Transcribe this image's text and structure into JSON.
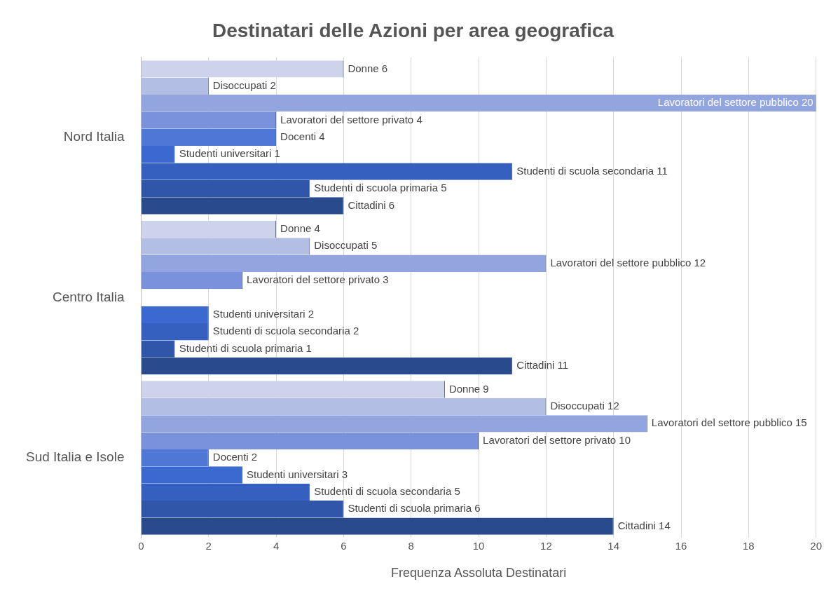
{
  "chart_data": {
    "type": "bar",
    "orientation": "horizontal",
    "title": "Destinatari delle Azioni per area geografica",
    "xlabel": "Frequenza Assoluta Destinatari",
    "categories": [
      "Nord Italia",
      "Centro Italia",
      "Sud Italia e Isole"
    ],
    "series": [
      {
        "color": "#cdd3ea",
        "values": [
          6,
          4,
          9
        ],
        "value_labels": [
          "Donne 6",
          "Donne 4",
          "Donne 9"
        ]
      },
      {
        "color": "#b3bee4",
        "values": [
          2,
          5,
          12
        ],
        "value_labels": [
          "Disoccupati 2",
          "Disoccupati 5",
          "Disoccupati 12"
        ]
      },
      {
        "color": "#93a5df",
        "values": [
          20,
          12,
          15
        ],
        "value_labels": [
          "Lavoratori del settore pubblico 20",
          "Lavoratori del settore pubblico 12",
          "Lavoratori del settore pubblico 15"
        ]
      },
      {
        "color": "#7a92dc",
        "values": [
          4,
          3,
          10
        ],
        "value_labels": [
          "Lavoratori del settore privato 4",
          "Lavoratori del settore privato 3",
          "Lavoratori del settore privato 10"
        ]
      },
      {
        "color": "#4f78d6",
        "values": [
          4,
          null,
          2
        ],
        "value_labels": [
          "Docenti 4",
          null,
          "Docenti 2"
        ]
      },
      {
        "color": "#3a6ad0",
        "values": [
          1,
          2,
          3
        ],
        "value_labels": [
          "Studenti universitari 1",
          "Studenti universitari 2",
          "Studenti universitari 3"
        ]
      },
      {
        "color": "#3560bf",
        "values": [
          11,
          2,
          5
        ],
        "value_labels": [
          "Studenti di scuola secondaria 11",
          "Studenti di scuola secondaria 2",
          "Studenti di scuola secondaria 5"
        ]
      },
      {
        "color": "#2f56a8",
        "values": [
          5,
          1,
          6
        ],
        "value_labels": [
          "Studenti di scuola primaria 5",
          "Studenti di scuola primaria 1",
          "Studenti di scuola primaria 6"
        ]
      },
      {
        "color": "#2a4a8e",
        "values": [
          6,
          11,
          14
        ],
        "value_labels": [
          "Cittadini 6",
          "Cittadini 11",
          "Cittadini 14"
        ]
      }
    ],
    "xlim": [
      0,
      20
    ],
    "xticks": [
      0,
      2,
      4,
      6,
      8,
      10,
      12,
      14,
      16,
      18,
      20
    ],
    "grid": "x",
    "legend": false
  }
}
